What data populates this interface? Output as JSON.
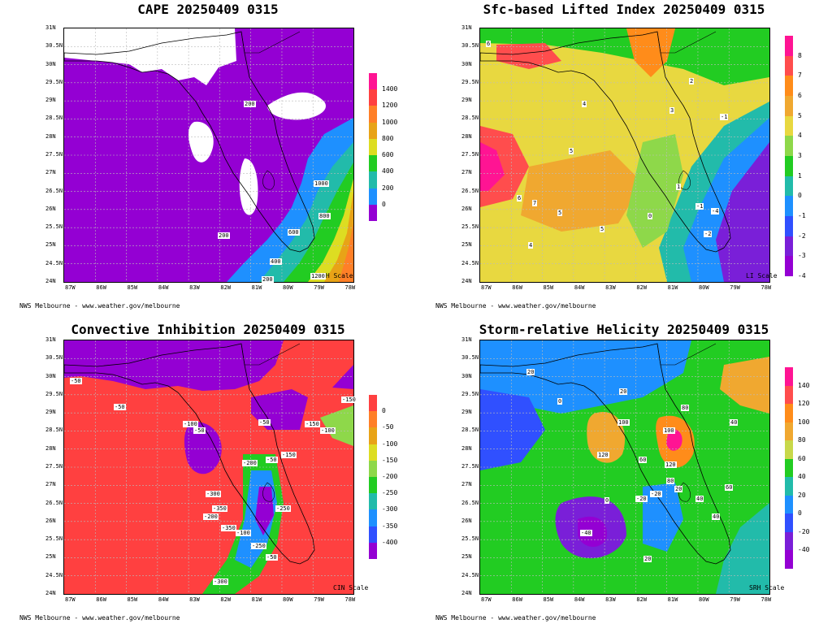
{
  "panels": [
    {
      "id": "cape",
      "title": "CAPE 20250409 0315",
      "scale_label": "RH Scale",
      "credit": "NWS Melbourne - www.weather.gov/melbourne",
      "colorbar": {
        "labels": [
          "1400",
          "1200",
          "1000",
          "800",
          "600",
          "400",
          "200",
          "0"
        ],
        "colors": [
          "#ff1493",
          "#ff4040",
          "#ff7f27",
          "#e8a317",
          "#dddd22",
          "#22cc22",
          "#22bbaa",
          "#1e90ff",
          "#9400d3"
        ]
      },
      "contour_labels": [
        "200",
        "1000",
        "800",
        "200",
        "400",
        "1200",
        "600",
        "200"
      ]
    },
    {
      "id": "li",
      "title": "Sfc-based Lifted Index 20250409 0315",
      "scale_label": "LI Scale",
      "credit": "NWS Melbourne - www.weather.gov/melbourne",
      "colorbar": {
        "labels": [
          "8",
          "7",
          "6",
          "5",
          "4",
          "3",
          "1",
          "0",
          "-1",
          "-2",
          "-3",
          "-4"
        ],
        "colors": [
          "#ff1493",
          "#ff4d4d",
          "#ff8c1a",
          "#f0a830",
          "#e8d840",
          "#8ed84a",
          "#22cc22",
          "#22bbaa",
          "#1e90ff",
          "#3050ff",
          "#7a1fd8",
          "#9400d3"
        ]
      },
      "contour_labels": [
        "6",
        "6",
        "7",
        "5",
        "4",
        "4",
        "5",
        "5",
        "3",
        "2",
        "-1",
        "-1",
        "-4",
        "-2",
        "0",
        "1"
      ]
    },
    {
      "id": "cin",
      "title": "Convective Inhibition 20250409 0315",
      "scale_label": "CIN Scale",
      "credit": "NWS Melbourne - www.weather.gov/melbourne",
      "colorbar": {
        "labels": [
          "0",
          "-50",
          "-100",
          "-150",
          "-200",
          "-250",
          "-300",
          "-350",
          "-400"
        ],
        "colors": [
          "#ff4040",
          "#ff7f27",
          "#e8a317",
          "#dddd22",
          "#8ed84a",
          "#22cc22",
          "#22bbaa",
          "#1e90ff",
          "#3050ff",
          "#9400d3"
        ]
      },
      "contour_labels": [
        "-50",
        "-50",
        "-100",
        "-50",
        "-50",
        "-300",
        "-150",
        "-100",
        "-150",
        "-200",
        "-50",
        "-350",
        "-250",
        "-200",
        "-350",
        "-100",
        "-250",
        "-50",
        "-300",
        "-150"
      ]
    },
    {
      "id": "srh",
      "title": "Storm-relative Helicity 20250409 0315",
      "scale_label": "SRH Scale",
      "credit": "NWS Melbourne - www.weather.gov/melbourne",
      "colorbar": {
        "labels": [
          "140",
          "120",
          "100",
          "80",
          "60",
          "40",
          "20",
          "0",
          "-20",
          "-40"
        ],
        "colors": [
          "#ff1493",
          "#ff4d4d",
          "#ff8c1a",
          "#f0a830",
          "#c8d84a",
          "#22cc22",
          "#22bbaa",
          "#1e90ff",
          "#3050ff",
          "#7a1fd8",
          "#9400d3"
        ]
      },
      "contour_labels": [
        "20",
        "0",
        "20",
        "120",
        "100",
        "100",
        "120",
        "80",
        "60",
        "80",
        "40",
        "0",
        "-40",
        "-20",
        "-20",
        "20",
        "40",
        "60",
        "40",
        "20"
      ]
    }
  ],
  "lat_labels": [
    "31N",
    "30.5N",
    "30N",
    "29.5N",
    "29N",
    "28.5N",
    "28N",
    "27.5N",
    "27N",
    "26.5N",
    "26N",
    "25.5N",
    "25N",
    "24.5N",
    "24N"
  ],
  "lon_labels": [
    "87W",
    "86W",
    "85W",
    "84W",
    "83W",
    "82W",
    "81W",
    "80W",
    "79W",
    "78W"
  ]
}
